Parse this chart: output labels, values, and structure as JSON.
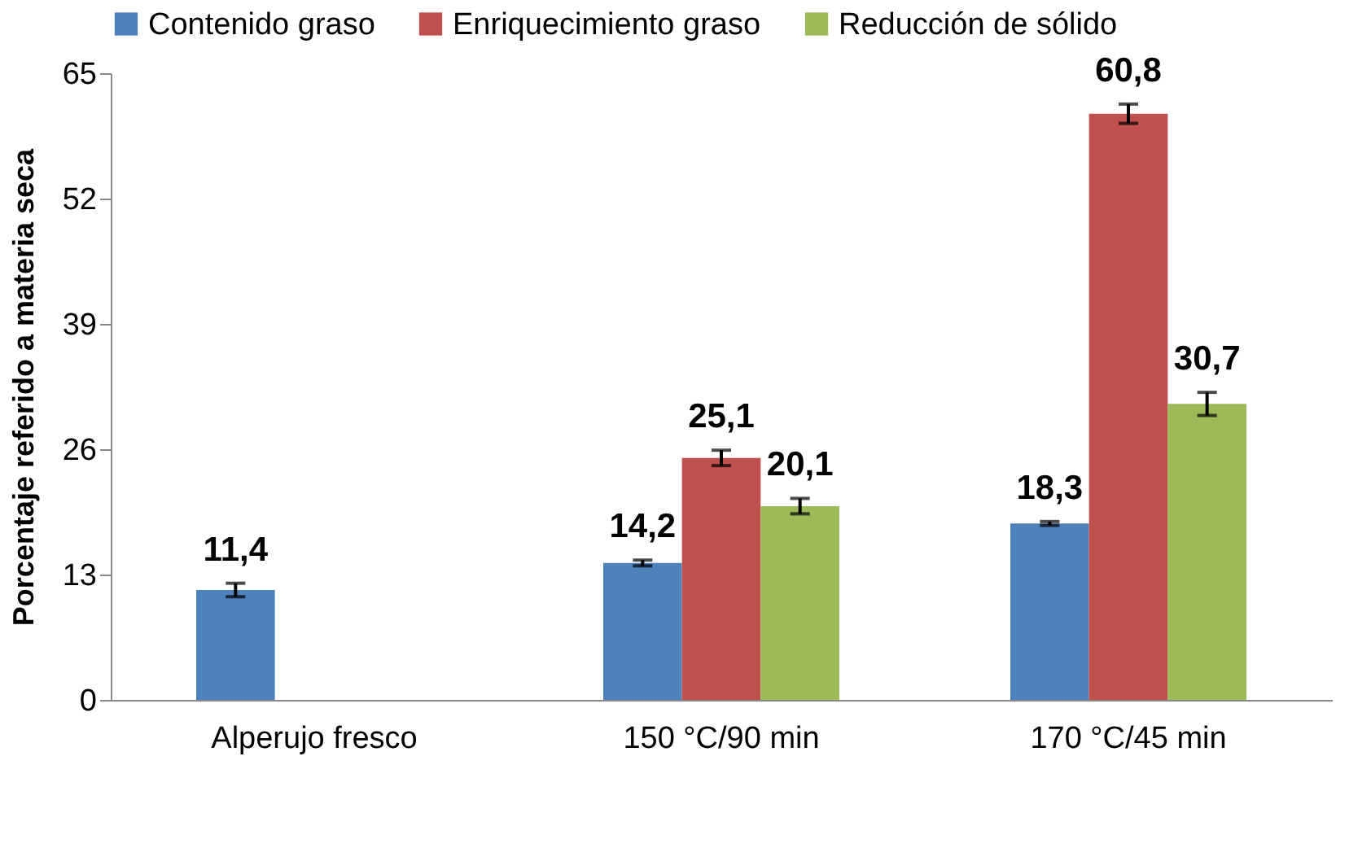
{
  "chart_data": {
    "type": "bar",
    "ylabel": "Porcentaje referido a materia seca",
    "categories": [
      "Alperujo fresco",
      "150 °C/90 min",
      "170 °C/45 min"
    ],
    "series": [
      {
        "name": "Contenido graso",
        "color": "#4f81bd",
        "values": [
          11.4,
          14.2,
          18.3
        ],
        "errors": [
          0.7,
          0.3,
          0.2
        ],
        "value_labels": [
          "11,4",
          "14,2",
          "18,3"
        ]
      },
      {
        "name": "Enriquecimiento graso",
        "color": "#c0504d",
        "values": [
          null,
          25.1,
          60.8
        ],
        "errors": [
          null,
          0.8,
          1.0
        ],
        "value_labels": [
          null,
          "25,1",
          "60,8"
        ]
      },
      {
        "name": "Reducción de sólido",
        "color": "#9bbb59",
        "values": [
          null,
          20.1,
          30.7
        ],
        "errors": [
          null,
          0.8,
          1.2
        ],
        "value_labels": [
          null,
          "20,1",
          "30,7"
        ]
      }
    ],
    "ylim": [
      0,
      65
    ],
    "yticks": [
      0,
      13,
      26,
      39,
      52,
      65
    ],
    "grid": false,
    "legend": "top"
  }
}
